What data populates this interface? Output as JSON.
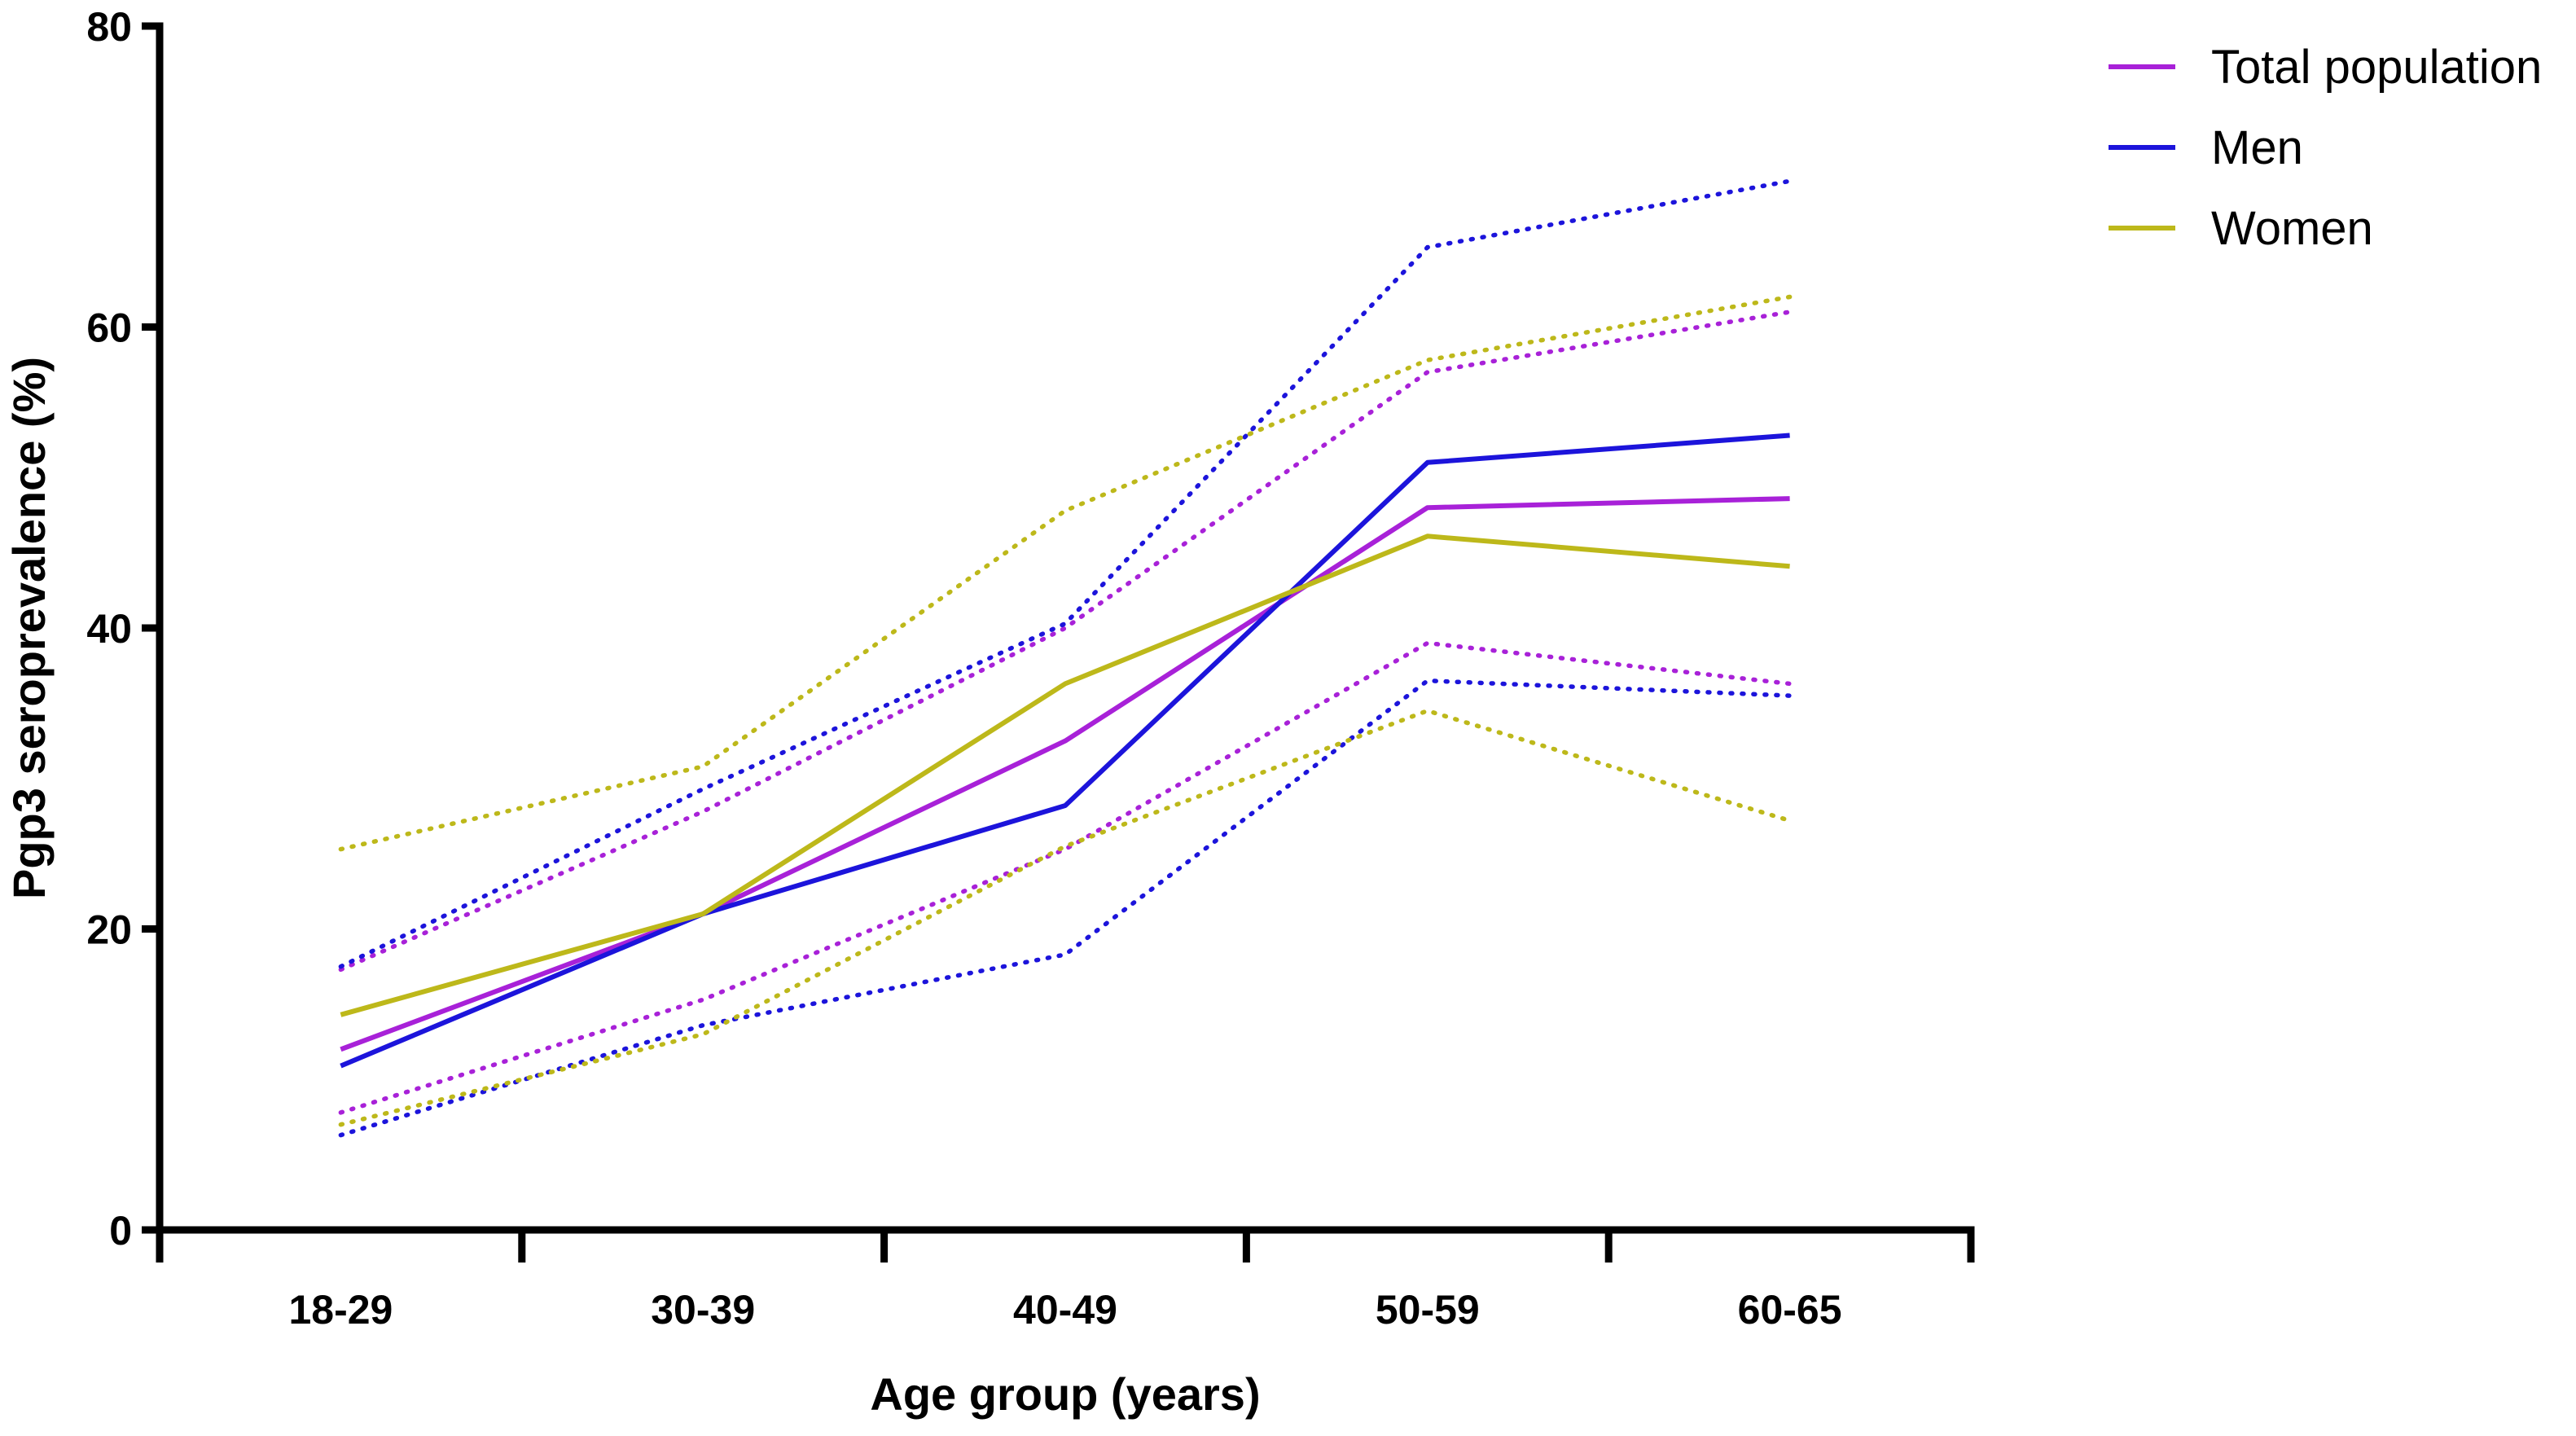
{
  "chart_data": {
    "type": "line",
    "title": "",
    "xlabel": "Age group (years)",
    "ylabel": "Pgp3 seroprevalence (%)",
    "categories": [
      "18-29",
      "30-39",
      "40-49",
      "50-59",
      "60-65"
    ],
    "ylim": [
      0,
      80
    ],
    "yticks": [
      "0",
      "20",
      "40",
      "60",
      "80"
    ],
    "grid": false,
    "legend_position": "top-right",
    "series": [
      {
        "name": "Total population",
        "color": "#A821D8",
        "values": [
          12.0,
          21.0,
          32.5,
          48.0,
          48.6
        ],
        "ci_upper": [
          17.3,
          27.8,
          40.0,
          57.0,
          61.0
        ],
        "ci_lower": [
          7.8,
          15.3,
          25.3,
          39.0,
          36.3
        ]
      },
      {
        "name": "Men",
        "color": "#1C14DB",
        "values": [
          10.9,
          21.0,
          28.2,
          51.0,
          52.8
        ],
        "ci_upper": [
          17.5,
          29.3,
          40.3,
          65.3,
          69.7
        ],
        "ci_lower": [
          6.3,
          13.6,
          18.3,
          36.5,
          35.5
        ]
      },
      {
        "name": "Women",
        "color": "#BDB81A",
        "values": [
          14.3,
          21.0,
          36.3,
          46.1,
          44.1
        ],
        "ci_upper": [
          25.3,
          30.8,
          47.8,
          57.8,
          62.0
        ],
        "ci_lower": [
          7.0,
          13.0,
          25.5,
          34.5,
          27.2
        ]
      }
    ]
  }
}
